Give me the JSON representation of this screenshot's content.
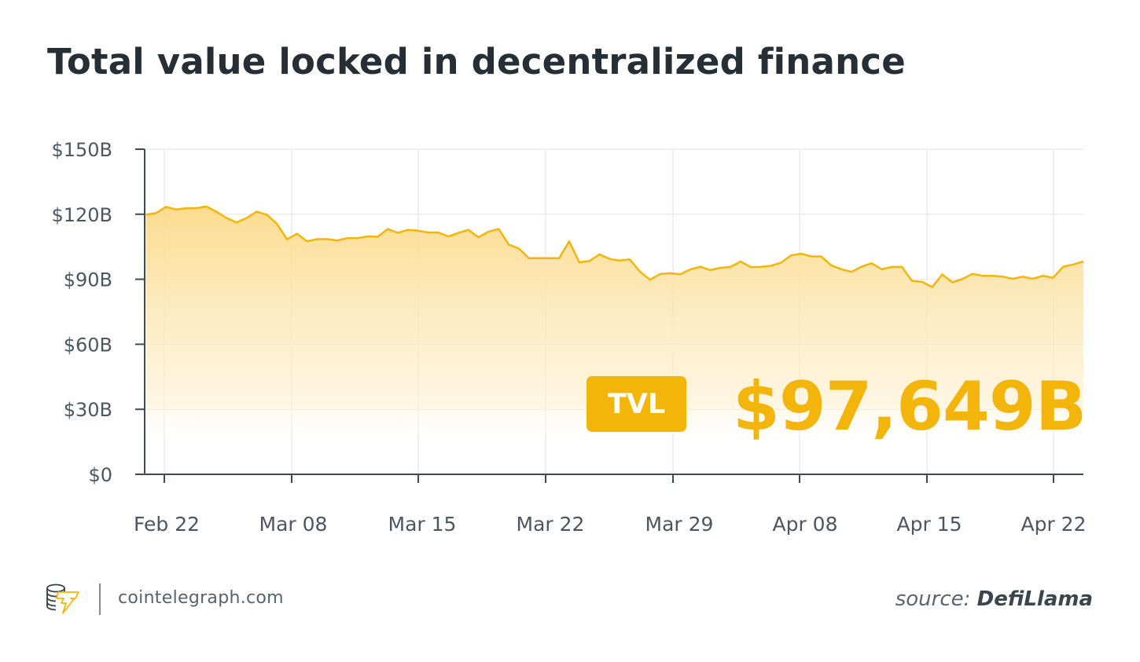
{
  "title": "Total value locked in decentralized finance",
  "colors": {
    "line": "#f4b50b",
    "fill_top": "#fbd987",
    "accent": "#f4b50b",
    "text": "#262f36"
  },
  "chart_data": {
    "type": "area",
    "title": "Total value locked in decentralized finance",
    "xlabel": "",
    "ylabel": "",
    "ylim": [
      0,
      150
    ],
    "y_ticks": [
      "$0",
      "$30B",
      "$60B",
      "$90B",
      "$120B",
      "$150B"
    ],
    "y_tick_values": [
      0,
      30,
      60,
      90,
      120,
      150
    ],
    "x_ticks": [
      "Feb 22",
      "Mar 08",
      "Mar 15",
      "Mar 22",
      "Mar 29",
      "Apr 08",
      "Apr 15",
      "Apr 22"
    ],
    "grid": true,
    "series": [
      {
        "unit": "$B",
        "values": [
          119.8,
          120.5,
          123.4,
          122.2,
          122.8,
          122.8,
          123.6,
          121.2,
          118.3,
          116.2,
          118.3,
          121.2,
          119.8,
          115.6,
          108.4,
          111.0,
          107.5,
          108.5,
          108.5,
          107.9,
          109.0,
          109.0,
          109.8,
          109.6,
          113.2,
          111.4,
          112.8,
          112.4,
          111.6,
          111.6,
          109.7,
          111.4,
          112.8,
          109.4,
          112.0,
          113.2,
          106.0,
          104.2,
          99.7,
          99.7,
          99.7,
          99.7,
          107.5,
          97.8,
          98.4,
          101.5,
          99.4,
          98.6,
          99.2,
          93.6,
          89.8,
          92.4,
          92.8,
          92.3,
          94.5,
          95.8,
          94.2,
          95.3,
          95.7,
          98.2,
          95.6,
          95.7,
          96.2,
          97.6,
          101.0,
          101.8,
          100.5,
          100.5,
          96.4,
          94.6,
          93.4,
          95.8,
          97.4,
          94.6,
          95.7,
          95.7,
          89.2,
          88.8,
          86.4,
          92.2,
          88.6,
          90.1,
          92.5,
          91.6,
          91.6,
          91.2,
          90.2,
          91.2,
          90.2,
          91.6,
          90.7,
          95.8,
          96.8,
          98.2
        ]
      }
    ]
  },
  "badge": {
    "label": "TVL",
    "value": "$97,649B"
  },
  "footer": {
    "site": "cointelegraph.com",
    "source_prefix": "source:",
    "source_name": "DefiLlama",
    "logo_icon": "cointelegraph-coins-lightning-logo"
  }
}
